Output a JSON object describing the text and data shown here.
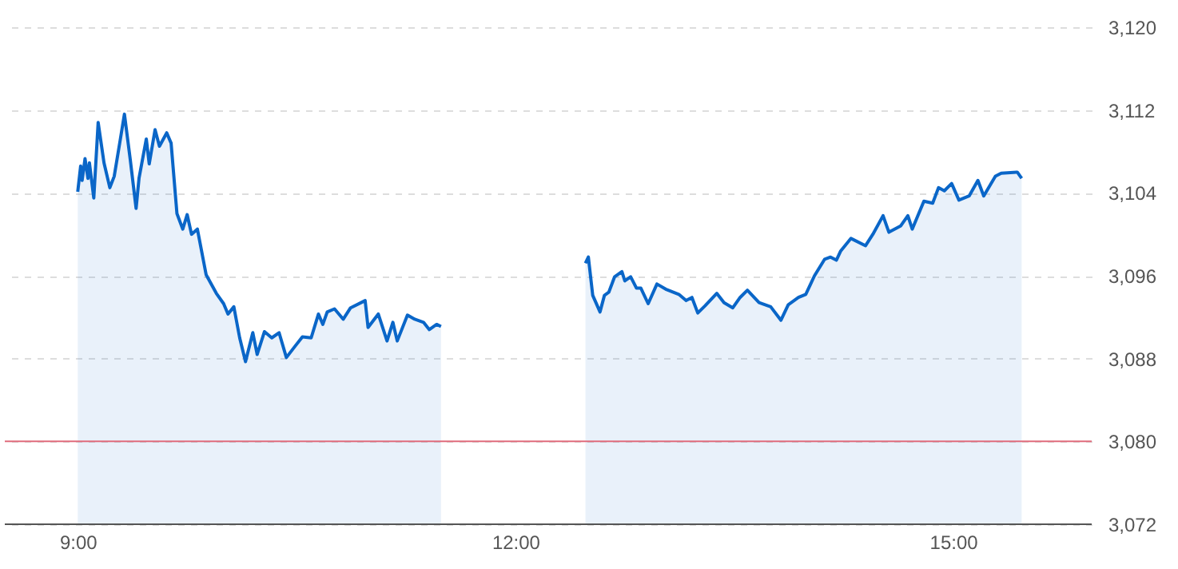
{
  "chart_data": {
    "type": "area",
    "x": [
      9.0,
      9.02,
      9.03,
      9.05,
      9.07,
      9.08,
      9.11,
      9.14,
      9.18,
      9.22,
      9.25,
      9.29,
      9.32,
      9.36,
      9.4,
      9.42,
      9.47,
      9.49,
      9.53,
      9.56,
      9.61,
      9.64,
      9.68,
      9.72,
      9.75,
      9.78,
      9.82,
      9.88,
      9.95,
      10.0,
      10.03,
      10.07,
      10.11,
      10.15,
      10.2,
      10.23,
      10.28,
      10.33,
      10.38,
      10.43,
      10.49,
      10.54,
      10.6,
      10.65,
      10.68,
      10.71,
      10.76,
      10.82,
      10.87,
      10.97,
      10.99,
      11.06,
      11.12,
      11.16,
      11.19,
      11.26,
      11.31,
      11.37,
      11.41,
      11.46,
      11.49,
      12.0,
      12.48,
      12.5,
      12.53,
      12.58,
      12.61,
      12.64,
      12.68,
      12.73,
      12.75,
      12.79,
      12.83,
      12.86,
      12.91,
      12.97,
      13.03,
      13.12,
      13.17,
      13.21,
      13.25,
      13.3,
      13.38,
      13.43,
      13.49,
      13.54,
      13.59,
      13.67,
      13.75,
      13.82,
      13.87,
      13.94,
      13.99,
      14.05,
      14.12,
      14.16,
      14.2,
      14.23,
      14.3,
      14.4,
      14.45,
      14.52,
      14.56,
      14.64,
      14.69,
      14.72,
      14.8,
      14.86,
      14.9,
      14.94,
      14.99,
      15.04,
      15.11,
      15.17,
      15.21,
      15.29,
      15.33,
      15.44,
      15.47
    ],
    "series": [
      {
        "color": "#0a66c8",
        "values": [
          3104.1,
          3106.6,
          3105.2,
          3107.3,
          3105.4,
          3106.9,
          3103.5,
          3110.8,
          3106.9,
          3104.5,
          3105.6,
          3109.0,
          3111.6,
          3107.2,
          3102.5,
          3105.4,
          3109.2,
          3106.8,
          3110.1,
          3108.5,
          3109.8,
          3108.8,
          3102.0,
          3100.5,
          3101.9,
          3100.0,
          3100.5,
          3096.1,
          3094.3,
          3093.3,
          3092.3,
          3093.0,
          3090.0,
          3087.7,
          3090.5,
          3088.4,
          3090.6,
          3090.0,
          3090.5,
          3088.1,
          3089.2,
          3090.1,
          3090.0,
          3092.3,
          3091.3,
          3092.5,
          3092.8,
          3091.8,
          3092.9,
          3093.6,
          3091.0,
          3092.3,
          3089.7,
          3091.5,
          3089.7,
          3092.2,
          3091.8,
          3091.5,
          3090.8,
          3091.3,
          3091.1,
          null,
          3097.2,
          3097.8,
          3094.1,
          3092.5,
          3094.1,
          3094.4,
          3095.9,
          3096.4,
          3095.5,
          3095.9,
          3094.8,
          3094.8,
          3093.3,
          3095.2,
          3094.7,
          3094.2,
          3093.6,
          3093.9,
          3092.4,
          3093.1,
          3094.3,
          3093.4,
          3092.9,
          3093.9,
          3094.6,
          3093.4,
          3093.0,
          3091.7,
          3093.2,
          3093.9,
          3094.2,
          3096.0,
          3097.6,
          3097.8,
          3097.5,
          3098.4,
          3099.6,
          3098.9,
          3100.0,
          3101.8,
          3100.2,
          3100.8,
          3101.8,
          3100.5,
          3103.2,
          3103.0,
          3104.5,
          3104.2,
          3104.9,
          3103.3,
          3103.7,
          3105.2,
          3103.7,
          3105.6,
          3105.9,
          3106.0,
          3105.4
        ]
      }
    ],
    "xlim": [
      8.5,
      15.95
    ],
    "xticks": [
      {
        "value": 9,
        "label": "9:00"
      },
      {
        "value": 12,
        "label": "12:00"
      },
      {
        "value": 15,
        "label": "15:00"
      }
    ],
    "ylim": [
      3072,
      3120
    ],
    "yticks": [
      {
        "value": 3072,
        "label": "3,072"
      },
      {
        "value": 3080,
        "label": "3,080"
      },
      {
        "value": 3088,
        "label": "3,088"
      },
      {
        "value": 3096,
        "label": "3,096"
      },
      {
        "value": 3104,
        "label": "3,104"
      },
      {
        "value": 3112,
        "label": "3,112"
      },
      {
        "value": 3120,
        "label": "3,120"
      }
    ],
    "grid": "y",
    "ref_lines": [
      {
        "axis": "y",
        "value": 3080,
        "color": "#e06c7c"
      }
    ]
  }
}
